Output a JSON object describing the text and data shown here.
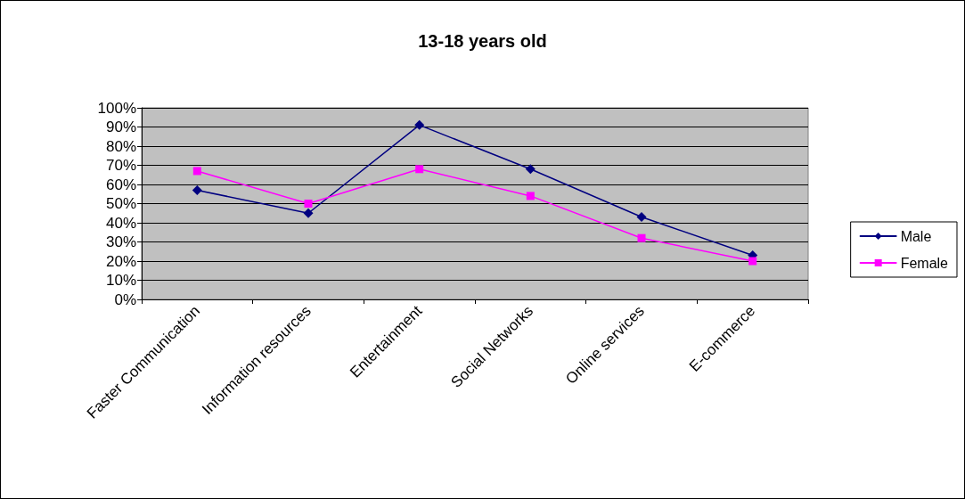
{
  "chart_data": {
    "type": "line",
    "title": "13-18 years old",
    "categories": [
      "Faster Communication",
      "Information resources",
      "Entertainment",
      "Social Networks",
      "Online services",
      "E-commerce"
    ],
    "series": [
      {
        "name": "Male",
        "color": "#000080",
        "marker": "diamond",
        "values": [
          57,
          45,
          91,
          68,
          43,
          23
        ]
      },
      {
        "name": "Female",
        "color": "#ff00ff",
        "marker": "square",
        "values": [
          67,
          50,
          68,
          54,
          32,
          20
        ]
      }
    ],
    "ylim": [
      0,
      100
    ],
    "yticks": [
      {
        "value": 0,
        "label": "0%"
      },
      {
        "value": 10,
        "label": "10%"
      },
      {
        "value": 20,
        "label": "20%"
      },
      {
        "value": 30,
        "label": "30%"
      },
      {
        "value": 40,
        "label": "40%"
      },
      {
        "value": 50,
        "label": "50%"
      },
      {
        "value": 60,
        "label": "60%"
      },
      {
        "value": 70,
        "label": "70%"
      },
      {
        "value": 80,
        "label": "80%"
      },
      {
        "value": 90,
        "label": "90%"
      },
      {
        "value": 100,
        "label": "100%"
      }
    ],
    "grid": "y",
    "legend": "right",
    "line_style": "solid"
  }
}
